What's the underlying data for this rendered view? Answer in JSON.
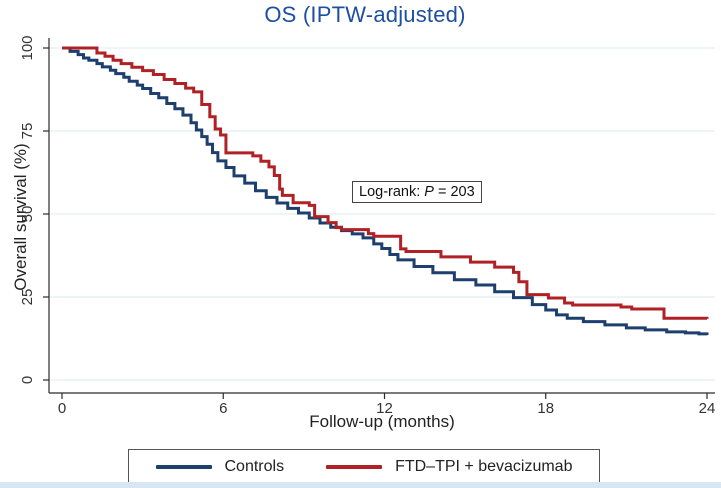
{
  "chart_data": {
    "type": "line",
    "subtype": "kaplan-meier-step",
    "title": "OS (IPTW-adjusted)",
    "xlabel": "Follow-up (months)",
    "ylabel": "Overall survival (%)",
    "xlim": [
      0,
      24
    ],
    "ylim": [
      0,
      100
    ],
    "xticks": [
      0,
      6,
      12,
      18,
      24
    ],
    "yticks": [
      0,
      25,
      50,
      75,
      100
    ],
    "grid": "horizontal-light-blue",
    "legend_position": "bottom-center-boxed",
    "title_color": "#1d4f9e",
    "annotation": {
      "prefix": "Log-rank: ",
      "p_symbol": "P",
      "suffix": " = 203"
    },
    "series": [
      {
        "name": "Controls",
        "color": "#1c3f6e",
        "points": [
          [
            0,
            100
          ],
          [
            0.3,
            99
          ],
          [
            0.6,
            98
          ],
          [
            0.8,
            97
          ],
          [
            1,
            96.3
          ],
          [
            1.3,
            95.3
          ],
          [
            1.5,
            94.3
          ],
          [
            1.8,
            93.3
          ],
          [
            2,
            92.3
          ],
          [
            2.3,
            91.2
          ],
          [
            2.5,
            90
          ],
          [
            2.8,
            88.8
          ],
          [
            3,
            87.8
          ],
          [
            3.3,
            86.3
          ],
          [
            3.6,
            85
          ],
          [
            3.9,
            83.3
          ],
          [
            4.2,
            81.7
          ],
          [
            4.5,
            79.8
          ],
          [
            4.8,
            77.5
          ],
          [
            5,
            75.3
          ],
          [
            5.2,
            73.3
          ],
          [
            5.4,
            71
          ],
          [
            5.6,
            68.5
          ],
          [
            5.8,
            66
          ],
          [
            6.1,
            64
          ],
          [
            6.4,
            61.5
          ],
          [
            6.8,
            59.3
          ],
          [
            7.2,
            57
          ],
          [
            7.6,
            55
          ],
          [
            8,
            53.3
          ],
          [
            8.4,
            51.7
          ],
          [
            8.8,
            50.3
          ],
          [
            9.2,
            48.8
          ],
          [
            9.6,
            47.3
          ],
          [
            10,
            46
          ],
          [
            10.4,
            45
          ],
          [
            10.8,
            44
          ],
          [
            11.2,
            42.8
          ],
          [
            11.6,
            41
          ],
          [
            11.9,
            39.6
          ],
          [
            12.2,
            37.8
          ],
          [
            12.5,
            36.2
          ],
          [
            13.1,
            34.2
          ],
          [
            13.8,
            32.3
          ],
          [
            14.6,
            30.2
          ],
          [
            15.4,
            28.6
          ],
          [
            16.1,
            26.6
          ],
          [
            16.8,
            24.8
          ],
          [
            17.5,
            22.7
          ],
          [
            18,
            21.1
          ],
          [
            18.4,
            19.6
          ],
          [
            18.8,
            18.6
          ],
          [
            19.4,
            17.6
          ],
          [
            20.2,
            16.6
          ],
          [
            21,
            15.7
          ],
          [
            21.7,
            15.1
          ],
          [
            22.5,
            14.5
          ],
          [
            23.2,
            14.2
          ],
          [
            23.7,
            13.9
          ],
          [
            24,
            13.5
          ]
        ]
      },
      {
        "name": "FTD–TPI + bevacizumab",
        "color": "#b02126",
        "points": [
          [
            0,
            100
          ],
          [
            1.3,
            98.5
          ],
          [
            1.6,
            97.5
          ],
          [
            1.9,
            96.3
          ],
          [
            2.2,
            95.3
          ],
          [
            2.6,
            94.2
          ],
          [
            3,
            93.2
          ],
          [
            3.4,
            92
          ],
          [
            3.8,
            90.5
          ],
          [
            4.2,
            89.3
          ],
          [
            4.6,
            87.9
          ],
          [
            4.9,
            86.8
          ],
          [
            5.2,
            83
          ],
          [
            5.5,
            79.3
          ],
          [
            5.7,
            75.6
          ],
          [
            5.9,
            73.8
          ],
          [
            6.1,
            68.4
          ],
          [
            7.1,
            67.5
          ],
          [
            7.4,
            65.9
          ],
          [
            7.7,
            64.2
          ],
          [
            7.9,
            61.6
          ],
          [
            8.1,
            57.5
          ],
          [
            8.2,
            55.6
          ],
          [
            8.6,
            53.4
          ],
          [
            9.2,
            52.6
          ],
          [
            9.4,
            49.2
          ],
          [
            9.9,
            47.4
          ],
          [
            10.2,
            45.9
          ],
          [
            10.4,
            45.3
          ],
          [
            11.4,
            44.1
          ],
          [
            11.6,
            43.3
          ],
          [
            12.6,
            39.5
          ],
          [
            12.8,
            38.7
          ],
          [
            14.1,
            37.1
          ],
          [
            15.2,
            35.5
          ],
          [
            16.1,
            34
          ],
          [
            16.8,
            32.4
          ],
          [
            17,
            29.6
          ],
          [
            17.3,
            25.7
          ],
          [
            18.1,
            24.7
          ],
          [
            18.7,
            23.2
          ],
          [
            19,
            22.6
          ],
          [
            20.8,
            22
          ],
          [
            21.2,
            21.4
          ],
          [
            22.4,
            18.6
          ],
          [
            24,
            18.4
          ]
        ]
      }
    ]
  }
}
